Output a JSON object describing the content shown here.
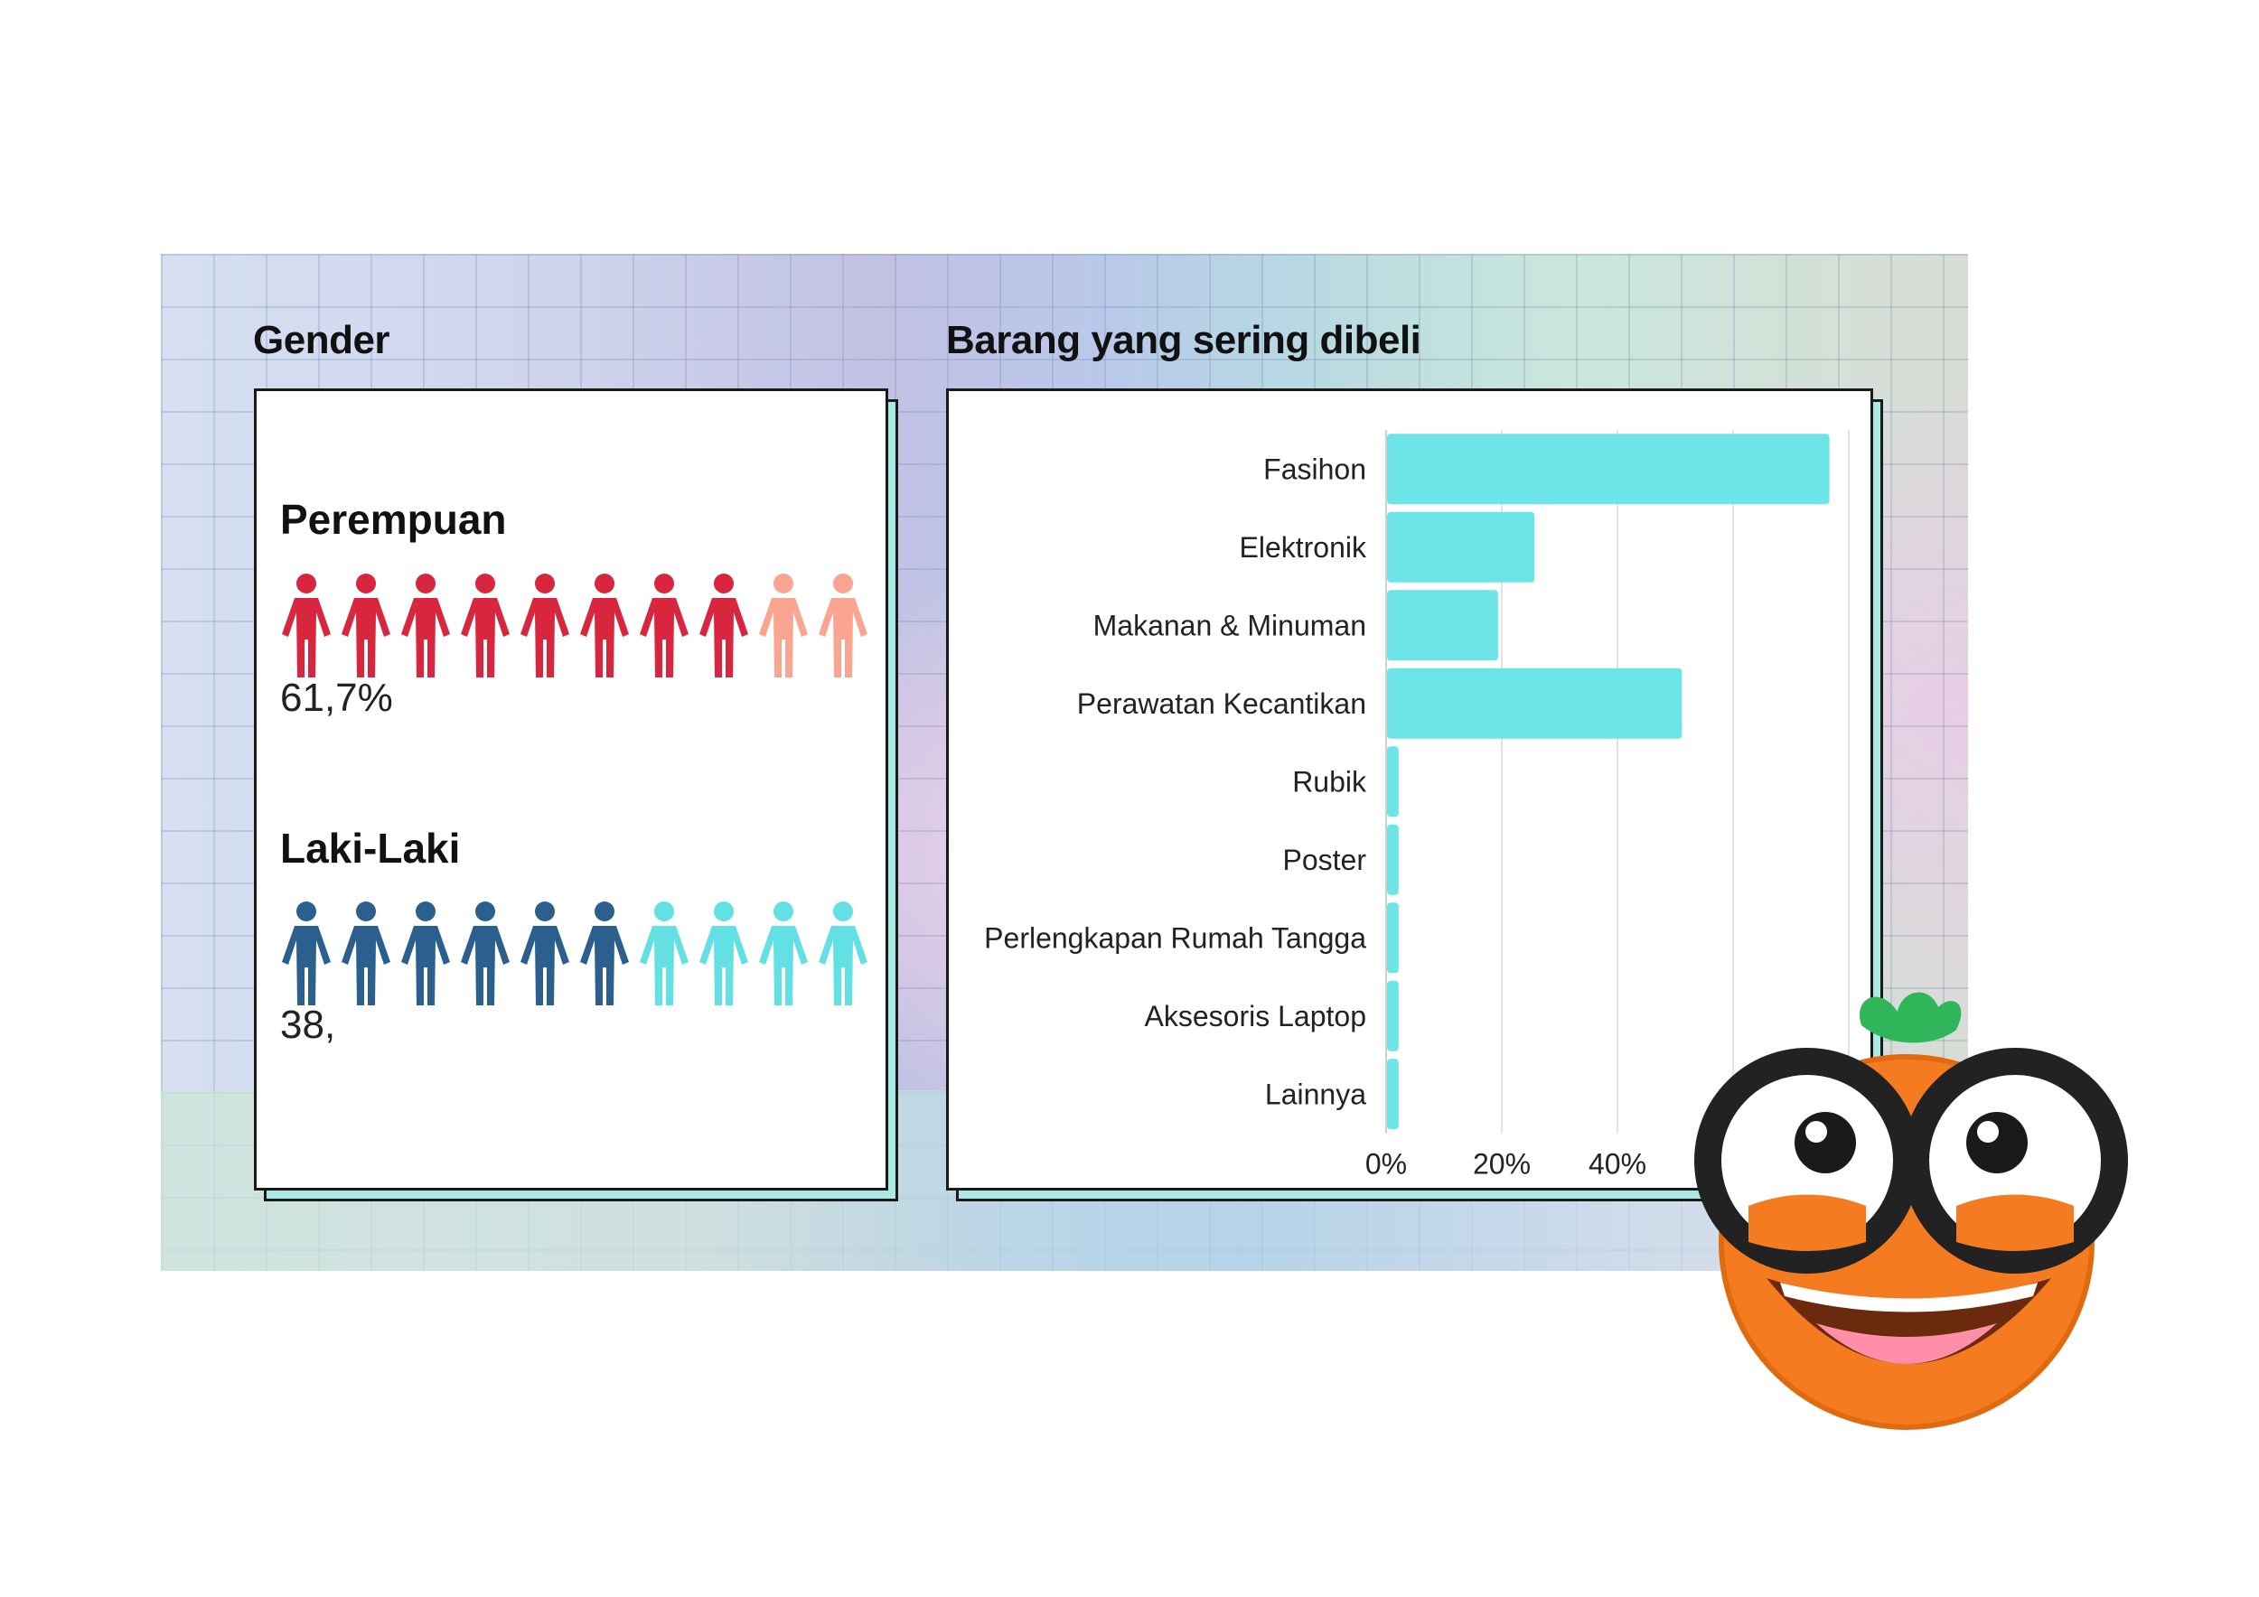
{
  "headings": {
    "gender": "Gender",
    "items": "Barang yang sering dibeli"
  },
  "gender": {
    "female": {
      "label": "Perempuan",
      "value_text": "61,7%",
      "icons_total": 10,
      "icons_filled": 8,
      "color_filled": "#d7263d",
      "color_light": "#f9a591"
    },
    "male": {
      "label": "Laki-Laki",
      "value_text": "38,",
      "icons_total": 10,
      "icons_filled": 6,
      "color_filled": "#2b5f8e",
      "color_light": "#62e0e4"
    }
  },
  "chart_data": {
    "type": "bar",
    "orientation": "horizontal",
    "categories": [
      "Fasihon",
      "Elektronik",
      "Makanan & Minuman",
      "Perawatan Kecantikan",
      "Rubik",
      "Poster",
      "Perlengkapan Rumah Tangga",
      "Aksesoris Laptop",
      "Lainnya"
    ],
    "values": [
      76.5,
      25.5,
      19.2,
      51,
      2,
      2,
      2,
      2,
      2
    ],
    "xlim": [
      0,
      80
    ],
    "xticks": [
      "0%",
      "20%",
      "40%"
    ],
    "xtick_values": [
      0,
      20,
      40
    ],
    "gridline_values": [
      20,
      40,
      60,
      80
    ],
    "bar_color": "#6ce4e8",
    "grid": true
  },
  "mascot": {
    "icon": "orange-mascot-with-glasses-icon"
  }
}
